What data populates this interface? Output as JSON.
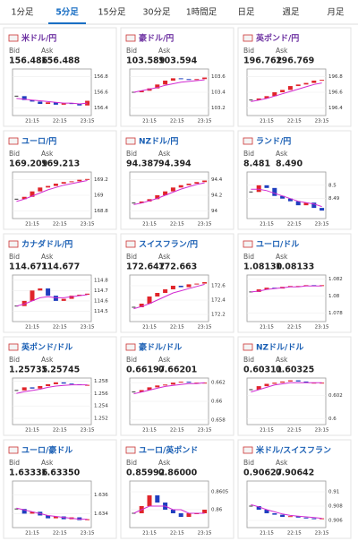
{
  "tabs": [
    "1分足",
    "5分足",
    "15分足",
    "30分足",
    "1時間足",
    "日足",
    "週足",
    "月足"
  ],
  "active_tab": 1,
  "bid_label": "Bid",
  "ask_label": "Ask",
  "xticks": [
    "21:15",
    "22:15",
    "23:15"
  ],
  "panels": [
    {
      "name": "米ドル/円",
      "bid": "156.486",
      "ask": "156.488",
      "ylim": [
        156.3,
        156.9
      ],
      "yticks": [
        156.8,
        156.6,
        156.4
      ],
      "values": [
        156.55,
        156.5,
        156.48,
        156.45,
        156.47,
        156.44,
        156.46,
        156.45,
        156.43,
        156.49
      ],
      "ma": [
        156.52,
        156.51,
        156.5,
        156.49,
        156.48,
        156.47,
        156.46,
        156.46,
        156.45,
        156.46
      ]
    },
    {
      "name": "豪ドル/円",
      "bid": "103.589",
      "ask": "103.594",
      "ylim": [
        103.1,
        103.7
      ],
      "yticks": [
        103.6,
        103.4,
        103.2
      ],
      "values": [
        103.4,
        103.42,
        103.45,
        103.5,
        103.55,
        103.58,
        103.57,
        103.56,
        103.57,
        103.59
      ],
      "ma": [
        103.4,
        103.42,
        103.44,
        103.46,
        103.49,
        103.51,
        103.53,
        103.54,
        103.55,
        103.56
      ]
    },
    {
      "name": "英ポンド/円",
      "bid": "196.762",
      "ask": "196.769",
      "ylim": [
        196.3,
        196.9
      ],
      "yticks": [
        196.8,
        196.6,
        196.4
      ],
      "values": [
        196.5,
        196.52,
        196.55,
        196.6,
        196.63,
        196.68,
        196.7,
        196.72,
        196.75,
        196.76
      ],
      "ma": [
        196.48,
        196.5,
        196.52,
        196.55,
        196.58,
        196.61,
        196.64,
        196.67,
        196.7,
        196.72
      ]
    },
    {
      "name": "ユーロ/円",
      "bid": "169.209",
      "ask": "169.213",
      "ylim": [
        168.7,
        169.3
      ],
      "yticks": [
        169.2,
        169,
        168.8
      ],
      "values": [
        168.95,
        168.98,
        169.05,
        169.1,
        169.12,
        169.15,
        169.17,
        169.18,
        169.2,
        169.21
      ],
      "ma": [
        168.92,
        168.95,
        168.99,
        169.03,
        169.07,
        169.1,
        169.13,
        169.15,
        169.17,
        169.19
      ]
    },
    {
      "name": "NZドル/円",
      "bid": "94.387",
      "ask": "94.394",
      "ylim": [
        93.9,
        94.5
      ],
      "yticks": [
        94.4,
        94.2,
        94
      ],
      "values": [
        94.1,
        94.12,
        94.15,
        94.2,
        94.25,
        94.3,
        94.33,
        94.35,
        94.37,
        94.39
      ],
      "ma": [
        94.08,
        94.1,
        94.13,
        94.16,
        94.2,
        94.24,
        94.28,
        94.31,
        94.34,
        94.36
      ]
    },
    {
      "name": "ランド/円",
      "bid": "8.481",
      "ask": "8.490",
      "ylim": [
        8.475,
        8.51
      ],
      "yticks": [
        8.5,
        8.49
      ],
      "values": [
        8.495,
        8.5,
        8.498,
        8.492,
        8.49,
        8.488,
        8.485,
        8.487,
        8.483,
        8.481
      ],
      "ma": [
        8.497,
        8.497,
        8.496,
        8.494,
        8.492,
        8.49,
        8.488,
        8.487,
        8.486,
        8.484
      ]
    },
    {
      "name": "カナダドル/円",
      "bid": "114.671",
      "ask": "114.677",
      "ylim": [
        114.4,
        114.85
      ],
      "yticks": [
        114.8,
        114.7,
        114.6,
        114.5
      ],
      "values": [
        114.55,
        114.6,
        114.7,
        114.72,
        114.65,
        114.6,
        114.62,
        114.65,
        114.66,
        114.67
      ],
      "ma": [
        114.55,
        114.57,
        114.6,
        114.63,
        114.64,
        114.63,
        114.63,
        114.64,
        114.65,
        114.66
      ]
    },
    {
      "name": "スイスフラン/円",
      "bid": "172.647",
      "ask": "172.663",
      "ylim": [
        172.1,
        172.75
      ],
      "yticks": [
        172.6,
        172.4,
        172.2
      ],
      "values": [
        172.3,
        172.35,
        172.45,
        172.5,
        172.55,
        172.6,
        172.58,
        172.62,
        172.63,
        172.65
      ],
      "ma": [
        172.28,
        172.31,
        172.35,
        172.4,
        172.45,
        172.5,
        172.53,
        172.56,
        172.59,
        172.62
      ]
    },
    {
      "name": "ユーロ/ドル",
      "bid": "1.08130",
      "ask": "1.08133",
      "ylim": [
        1.077,
        1.0825
      ],
      "yticks": [
        1.082,
        1.08,
        1.078
      ],
      "values": [
        1.0805,
        1.0808,
        1.081,
        1.0809,
        1.0811,
        1.0812,
        1.0812,
        1.0813,
        1.0812,
        1.0813
      ],
      "ma": [
        1.0805,
        1.0806,
        1.0808,
        1.0809,
        1.081,
        1.0811,
        1.0811,
        1.0812,
        1.0812,
        1.0812
      ]
    },
    {
      "name": "英ポンド/ドル",
      "bid": "1.25735",
      "ask": "1.25745",
      "ylim": [
        1.251,
        1.2585
      ],
      "yticks": [
        1.258,
        1.256,
        1.254,
        1.252
      ],
      "values": [
        1.2565,
        1.257,
        1.2568,
        1.2572,
        1.2575,
        1.2578,
        1.2576,
        1.2575,
        1.2574,
        1.2574
      ],
      "ma": [
        1.256,
        1.2563,
        1.2565,
        1.2567,
        1.257,
        1.2572,
        1.2573,
        1.2574,
        1.2574,
        1.2574
      ]
    },
    {
      "name": "豪ドル/ドル",
      "bid": "0.66197",
      "ask": "0.66201",
      "ylim": [
        0.6575,
        0.6625
      ],
      "yticks": [
        0.662,
        0.66,
        0.658
      ],
      "values": [
        0.661,
        0.6612,
        0.6615,
        0.6617,
        0.6618,
        0.662,
        0.6621,
        0.662,
        0.662,
        0.662
      ],
      "ma": [
        0.6608,
        0.661,
        0.6612,
        0.6614,
        0.6616,
        0.6617,
        0.6618,
        0.6619,
        0.6619,
        0.662
      ]
    },
    {
      "name": "NZドル/ドル",
      "bid": "0.60311",
      "ask": "0.60325",
      "ylim": [
        0.5995,
        0.6035
      ],
      "yticks": [
        0.602,
        0.6
      ],
      "values": [
        0.6025,
        0.6028,
        0.603,
        0.6031,
        0.6032,
        0.6033,
        0.6032,
        0.6031,
        0.6031,
        0.6031
      ],
      "ma": [
        0.6023,
        0.6025,
        0.6027,
        0.6029,
        0.603,
        0.6031,
        0.6031,
        0.6031,
        0.6031,
        0.6031
      ]
    },
    {
      "name": "ユーロ/豪ドル",
      "bid": "1.63336",
      "ask": "1.63350",
      "ylim": [
        1.6325,
        1.6375
      ],
      "yticks": [
        1.636,
        1.634
      ],
      "values": [
        1.6345,
        1.634,
        1.6342,
        1.6338,
        1.6335,
        1.6337,
        1.6334,
        1.6336,
        1.6333,
        1.6334
      ],
      "ma": [
        1.6346,
        1.6344,
        1.6342,
        1.634,
        1.6338,
        1.6337,
        1.6336,
        1.6335,
        1.6334,
        1.6334
      ]
    },
    {
      "name": "ユーロ/英ポンド",
      "bid": "0.85992",
      "ask": "0.86000",
      "ylim": [
        0.8595,
        0.8608
      ],
      "yticks": [
        0.8605,
        0.86
      ],
      "values": [
        0.8599,
        0.8601,
        0.8604,
        0.8602,
        0.86,
        0.8599,
        0.8598,
        0.8599,
        0.8599,
        0.86
      ],
      "ma": [
        0.8599,
        0.86,
        0.8601,
        0.8601,
        0.8601,
        0.86,
        0.86,
        0.8599,
        0.8599,
        0.8599
      ]
    },
    {
      "name": "米ドル/スイスフラン",
      "bid": "0.90627",
      "ask": "0.90642",
      "ylim": [
        0.905,
        0.9115
      ],
      "yticks": [
        0.91,
        0.908,
        0.906
      ],
      "values": [
        0.908,
        0.9075,
        0.907,
        0.9068,
        0.9065,
        0.9066,
        0.9064,
        0.9063,
        0.9062,
        0.9063
      ],
      "ma": [
        0.9082,
        0.9079,
        0.9075,
        0.9072,
        0.9069,
        0.9067,
        0.9066,
        0.9065,
        0.9064,
        0.9063
      ]
    }
  ]
}
